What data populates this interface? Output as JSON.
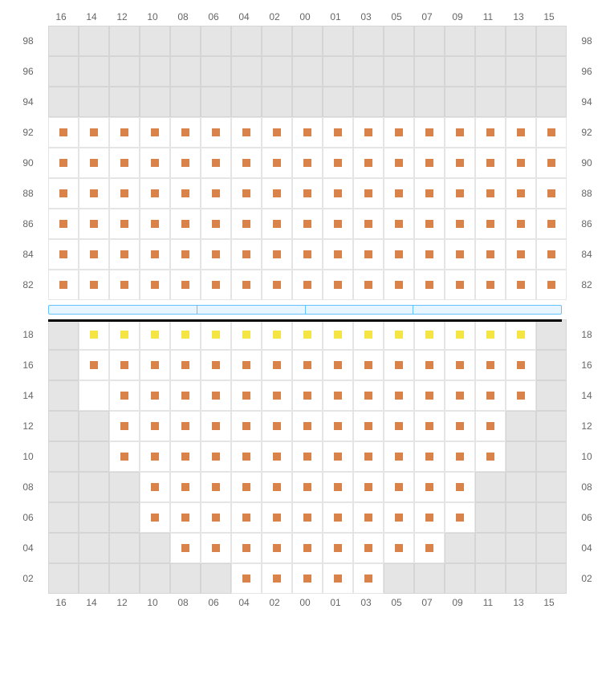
{
  "columns": [
    "16",
    "14",
    "12",
    "10",
    "08",
    "06",
    "04",
    "02",
    "00",
    "01",
    "03",
    "05",
    "07",
    "09",
    "11",
    "13",
    "15"
  ],
  "colors": {
    "orange": "#d9824a",
    "yellow": "#f5e542",
    "blank_bg": "#e5e5e5",
    "blank_border": "#d5d5d5",
    "white_border": "#e5e5e5",
    "divider_fill": "#e6f5ff",
    "divider_border": "#66c2ff"
  },
  "cell_size": 38,
  "marker_size": 10,
  "upper_section": [
    {
      "row": "98",
      "cells": [
        ".",
        ".",
        ".",
        ".",
        ".",
        ".",
        ".",
        ".",
        ".",
        ".",
        ".",
        ".",
        ".",
        ".",
        ".",
        ".",
        "."
      ]
    },
    {
      "row": "96",
      "cells": [
        ".",
        ".",
        ".",
        ".",
        ".",
        ".",
        ".",
        ".",
        ".",
        ".",
        ".",
        ".",
        ".",
        ".",
        ".",
        ".",
        "."
      ]
    },
    {
      "row": "94",
      "cells": [
        ".",
        ".",
        ".",
        ".",
        ".",
        ".",
        ".",
        ".",
        ".",
        ".",
        ".",
        ".",
        ".",
        ".",
        ".",
        ".",
        "."
      ]
    },
    {
      "row": "92",
      "cells": [
        "o",
        "o",
        "o",
        "o",
        "o",
        "o",
        "o",
        "o",
        "o",
        "o",
        "o",
        "o",
        "o",
        "o",
        "o",
        "o",
        "o"
      ]
    },
    {
      "row": "90",
      "cells": [
        "o",
        "o",
        "o",
        "o",
        "o",
        "o",
        "o",
        "o",
        "o",
        "o",
        "o",
        "o",
        "o",
        "o",
        "o",
        "o",
        "o"
      ]
    },
    {
      "row": "88",
      "cells": [
        "o",
        "o",
        "o",
        "o",
        "o",
        "o",
        "o",
        "o",
        "o",
        "o",
        "o",
        "o",
        "o",
        "o",
        "o",
        "o",
        "o"
      ]
    },
    {
      "row": "86",
      "cells": [
        "o",
        "o",
        "o",
        "o",
        "o",
        "o",
        "o",
        "o",
        "o",
        "o",
        "o",
        "o",
        "o",
        "o",
        "o",
        "o",
        "o"
      ]
    },
    {
      "row": "84",
      "cells": [
        "o",
        "o",
        "o",
        "o",
        "o",
        "o",
        "o",
        "o",
        "o",
        "o",
        "o",
        "o",
        "o",
        "o",
        "o",
        "o",
        "o"
      ]
    },
    {
      "row": "82",
      "cells": [
        "o",
        "o",
        "o",
        "o",
        "o",
        "o",
        "o",
        "o",
        "o",
        "o",
        "o",
        "o",
        "o",
        "o",
        "o",
        "o",
        "o"
      ]
    }
  ],
  "lower_section": [
    {
      "row": "18",
      "cells": [
        ".",
        "y",
        "y",
        "y",
        "y",
        "y",
        "y",
        "y",
        "y",
        "y",
        "y",
        "y",
        "y",
        "y",
        "y",
        "y",
        "."
      ]
    },
    {
      "row": "16",
      "cells": [
        ".",
        "o",
        "o",
        "o",
        "o",
        "o",
        "o",
        "o",
        "o",
        "o",
        "o",
        "o",
        "o",
        "o",
        "o",
        "o",
        "."
      ]
    },
    {
      "row": "14",
      "cells": [
        ".",
        "w",
        "o",
        "o",
        "o",
        "o",
        "o",
        "o",
        "o",
        "o",
        "o",
        "o",
        "o",
        "o",
        "o",
        "o",
        "."
      ]
    },
    {
      "row": "12",
      "cells": [
        ".",
        ".",
        "o",
        "o",
        "o",
        "o",
        "o",
        "o",
        "o",
        "o",
        "o",
        "o",
        "o",
        "o",
        "o",
        ".",
        "."
      ]
    },
    {
      "row": "10",
      "cells": [
        ".",
        ".",
        "o",
        "o",
        "o",
        "o",
        "o",
        "o",
        "o",
        "o",
        "o",
        "o",
        "o",
        "o",
        "o",
        ".",
        "."
      ]
    },
    {
      "row": "08",
      "cells": [
        ".",
        ".",
        ".",
        "o",
        "o",
        "o",
        "o",
        "o",
        "o",
        "o",
        "o",
        "o",
        "o",
        "o",
        ".",
        ".",
        "."
      ]
    },
    {
      "row": "06",
      "cells": [
        ".",
        ".",
        ".",
        "o",
        "o",
        "o",
        "o",
        "o",
        "o",
        "o",
        "o",
        "o",
        "o",
        "o",
        ".",
        ".",
        "."
      ]
    },
    {
      "row": "04",
      "cells": [
        ".",
        ".",
        ".",
        ".",
        "o",
        "o",
        "o",
        "o",
        "o",
        "o",
        "o",
        "o",
        "o",
        ".",
        ".",
        ".",
        "."
      ]
    },
    {
      "row": "02",
      "cells": [
        ".",
        ".",
        ".",
        ".",
        ".",
        ".",
        "o",
        "o",
        "o",
        "o",
        "o",
        ".",
        ".",
        ".",
        ".",
        ".",
        "."
      ]
    }
  ],
  "divider_segments": 4
}
